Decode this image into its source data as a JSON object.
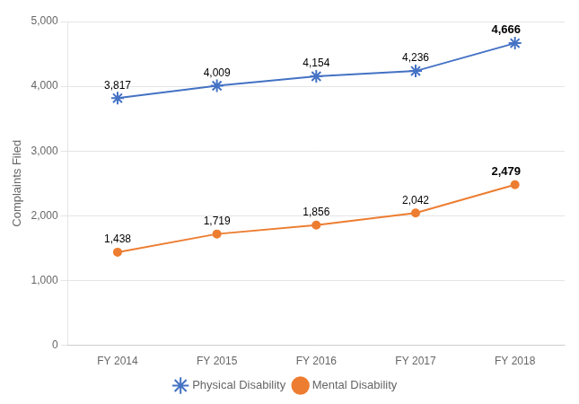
{
  "chart_data": {
    "type": "line",
    "categories": [
      "FY 2014",
      "FY 2015",
      "FY 2016",
      "FY 2017",
      "FY 2018"
    ],
    "series": [
      {
        "name": "Physical Disability",
        "color": "#4472C4",
        "marker": "star",
        "values": [
          3817,
          4009,
          4154,
          4236,
          4666
        ],
        "value_labels": [
          "3,817",
          "4,009",
          "4,154",
          "4,236",
          "4,666"
        ]
      },
      {
        "name": "Mental Disability",
        "color": "#ED7D31",
        "marker": "circle",
        "values": [
          1438,
          1719,
          1856,
          2042,
          2479
        ],
        "value_labels": [
          "1,438",
          "1,719",
          "1,856",
          "2,042",
          "2,479"
        ]
      }
    ],
    "ylabel": "Complaints Filed",
    "ylim": [
      0,
      5000
    ],
    "yticks": [
      0,
      {
        "value": 1000,
        "label": "1,000"
      },
      {
        "value": 2000,
        "label": "2,000"
      },
      {
        "value": 3000,
        "label": "3,000"
      },
      {
        "value": 4000,
        "label": "4,000"
      },
      {
        "value": 5000,
        "label": "5,000"
      }
    ],
    "grid": true,
    "legend": "bottom",
    "data_labels": true
  }
}
